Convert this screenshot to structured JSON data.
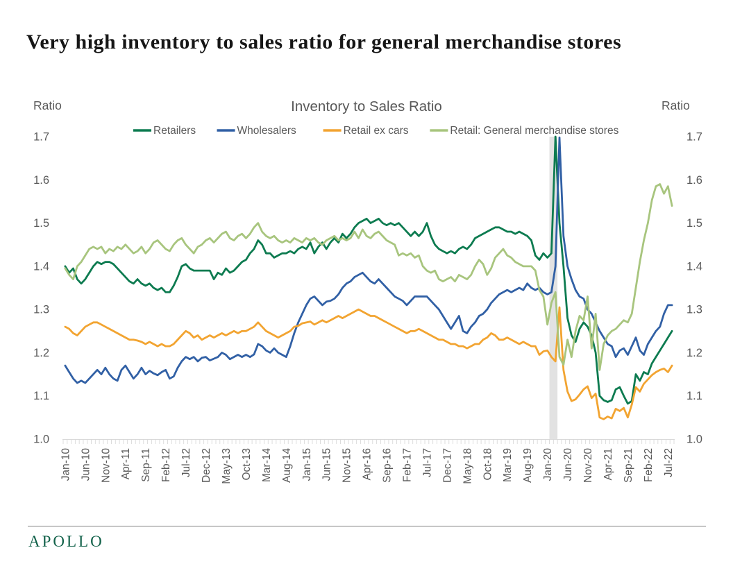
{
  "page_title": "Very high inventory to sales ratio for general merchandise stores",
  "chart_data": {
    "type": "line",
    "title": "Inventory to Sales Ratio",
    "y_axis_label_left": "Ratio",
    "y_axis_label_right": "Ratio",
    "ylim": [
      1.0,
      1.7
    ],
    "y_ticks": [
      1.0,
      1.1,
      1.2,
      1.3,
      1.4,
      1.5,
      1.6,
      1.7
    ],
    "x_label_interval": 5,
    "x_tick_labels": [
      "Jan-10",
      "Jun-10",
      "Nov-10",
      "Apr-11",
      "Sep-11",
      "Feb-12",
      "Jul-12",
      "Dec-12",
      "May-13",
      "Oct-13",
      "Mar-14",
      "Aug-14",
      "Jan-15",
      "Jun-15",
      "Nov-15",
      "Apr-16",
      "Sep-16",
      "Feb-17",
      "Jul-17",
      "Dec-17",
      "May-18",
      "Oct-18",
      "Mar-19",
      "Aug-19",
      "Jan-20",
      "Jun-20",
      "Nov-20",
      "Apr-21",
      "Sep-21",
      "Feb-22",
      "Jul-22"
    ],
    "categories": [
      "Jan-10",
      "Feb-10",
      "Mar-10",
      "Apr-10",
      "May-10",
      "Jun-10",
      "Jul-10",
      "Aug-10",
      "Sep-10",
      "Oct-10",
      "Nov-10",
      "Dec-10",
      "Jan-11",
      "Feb-11",
      "Mar-11",
      "Apr-11",
      "May-11",
      "Jun-11",
      "Jul-11",
      "Aug-11",
      "Sep-11",
      "Oct-11",
      "Nov-11",
      "Dec-11",
      "Jan-12",
      "Feb-12",
      "Mar-12",
      "Apr-12",
      "May-12",
      "Jun-12",
      "Jul-12",
      "Aug-12",
      "Sep-12",
      "Oct-12",
      "Nov-12",
      "Dec-12",
      "Jan-13",
      "Feb-13",
      "Mar-13",
      "Apr-13",
      "May-13",
      "Jun-13",
      "Jul-13",
      "Aug-13",
      "Sep-13",
      "Oct-13",
      "Nov-13",
      "Dec-13",
      "Jan-14",
      "Feb-14",
      "Mar-14",
      "Apr-14",
      "May-14",
      "Jun-14",
      "Jul-14",
      "Aug-14",
      "Sep-14",
      "Oct-14",
      "Nov-14",
      "Dec-14",
      "Jan-15",
      "Feb-15",
      "Mar-15",
      "Apr-15",
      "May-15",
      "Jun-15",
      "Jul-15",
      "Aug-15",
      "Sep-15",
      "Oct-15",
      "Nov-15",
      "Dec-15",
      "Jan-16",
      "Feb-16",
      "Mar-16",
      "Apr-16",
      "May-16",
      "Jun-16",
      "Jul-16",
      "Aug-16",
      "Sep-16",
      "Oct-16",
      "Nov-16",
      "Dec-16",
      "Jan-17",
      "Feb-17",
      "Mar-17",
      "Apr-17",
      "May-17",
      "Jun-17",
      "Jul-17",
      "Aug-17",
      "Sep-17",
      "Oct-17",
      "Nov-17",
      "Dec-17",
      "Jan-18",
      "Feb-18",
      "Mar-18",
      "Apr-18",
      "May-18",
      "Jun-18",
      "Jul-18",
      "Aug-18",
      "Sep-18",
      "Oct-18",
      "Nov-18",
      "Dec-18",
      "Jan-19",
      "Feb-19",
      "Mar-19",
      "Apr-19",
      "May-19",
      "Jun-19",
      "Jul-19",
      "Aug-19",
      "Sep-19",
      "Oct-19",
      "Nov-19",
      "Dec-19",
      "Jan-20",
      "Feb-20",
      "Mar-20",
      "Apr-20",
      "May-20",
      "Jun-20",
      "Jul-20",
      "Aug-20",
      "Sep-20",
      "Oct-20",
      "Nov-20",
      "Dec-20",
      "Jan-21",
      "Feb-21",
      "Mar-21",
      "Apr-21",
      "May-21",
      "Jun-21",
      "Jul-21",
      "Aug-21",
      "Sep-21",
      "Oct-21",
      "Nov-21",
      "Dec-21",
      "Jan-22",
      "Feb-22",
      "Mar-22",
      "Apr-22",
      "May-22",
      "Jun-22",
      "Jul-22",
      "Aug-22"
    ],
    "series": [
      {
        "name": "Retailers",
        "color": "#0D7B50",
        "values": [
          1.4,
          1.385,
          1.395,
          1.37,
          1.36,
          1.37,
          1.385,
          1.4,
          1.41,
          1.405,
          1.41,
          1.41,
          1.405,
          1.395,
          1.385,
          1.375,
          1.365,
          1.36,
          1.37,
          1.36,
          1.355,
          1.36,
          1.35,
          1.345,
          1.35,
          1.34,
          1.34,
          1.355,
          1.375,
          1.4,
          1.405,
          1.395,
          1.39,
          1.39,
          1.39,
          1.39,
          1.39,
          1.37,
          1.385,
          1.38,
          1.395,
          1.385,
          1.39,
          1.4,
          1.41,
          1.415,
          1.43,
          1.44,
          1.46,
          1.45,
          1.43,
          1.43,
          1.42,
          1.425,
          1.43,
          1.43,
          1.435,
          1.43,
          1.44,
          1.445,
          1.44,
          1.455,
          1.43,
          1.445,
          1.455,
          1.44,
          1.455,
          1.465,
          1.455,
          1.475,
          1.465,
          1.475,
          1.49,
          1.5,
          1.505,
          1.51,
          1.5,
          1.505,
          1.51,
          1.5,
          1.495,
          1.5,
          1.495,
          1.5,
          1.49,
          1.48,
          1.47,
          1.48,
          1.47,
          1.48,
          1.5,
          1.47,
          1.45,
          1.44,
          1.435,
          1.43,
          1.435,
          1.43,
          1.44,
          1.445,
          1.44,
          1.45,
          1.465,
          1.47,
          1.475,
          1.48,
          1.485,
          1.49,
          1.49,
          1.485,
          1.48,
          1.48,
          1.475,
          1.48,
          1.475,
          1.47,
          1.46,
          1.425,
          1.415,
          1.43,
          1.42,
          1.43,
          1.7,
          1.5,
          1.4,
          1.28,
          1.24,
          1.225,
          1.255,
          1.27,
          1.26,
          1.24,
          1.2,
          1.1,
          1.09,
          1.086,
          1.09,
          1.115,
          1.12,
          1.1,
          1.082,
          1.088,
          1.15,
          1.135,
          1.155,
          1.15,
          1.175,
          1.19,
          1.205,
          1.22,
          1.235,
          1.25
        ]
      },
      {
        "name": "Wholesalers",
        "color": "#3160A5",
        "values": [
          1.17,
          1.155,
          1.14,
          1.13,
          1.135,
          1.13,
          1.14,
          1.15,
          1.16,
          1.15,
          1.165,
          1.15,
          1.14,
          1.135,
          1.16,
          1.17,
          1.155,
          1.14,
          1.15,
          1.165,
          1.15,
          1.158,
          1.152,
          1.148,
          1.155,
          1.16,
          1.14,
          1.145,
          1.165,
          1.18,
          1.19,
          1.185,
          1.19,
          1.18,
          1.188,
          1.19,
          1.182,
          1.186,
          1.19,
          1.2,
          1.195,
          1.185,
          1.19,
          1.195,
          1.19,
          1.195,
          1.19,
          1.196,
          1.22,
          1.215,
          1.205,
          1.2,
          1.21,
          1.2,
          1.195,
          1.19,
          1.215,
          1.245,
          1.27,
          1.29,
          1.31,
          1.325,
          1.33,
          1.32,
          1.31,
          1.318,
          1.32,
          1.325,
          1.335,
          1.35,
          1.36,
          1.365,
          1.375,
          1.38,
          1.385,
          1.375,
          1.365,
          1.36,
          1.37,
          1.36,
          1.35,
          1.34,
          1.33,
          1.325,
          1.32,
          1.31,
          1.32,
          1.33,
          1.33,
          1.33,
          1.33,
          1.32,
          1.31,
          1.3,
          1.285,
          1.27,
          1.255,
          1.27,
          1.285,
          1.25,
          1.245,
          1.26,
          1.27,
          1.285,
          1.29,
          1.3,
          1.315,
          1.325,
          1.335,
          1.34,
          1.345,
          1.34,
          1.345,
          1.35,
          1.345,
          1.36,
          1.35,
          1.345,
          1.35,
          1.34,
          1.335,
          1.34,
          1.4,
          1.698,
          1.47,
          1.4,
          1.37,
          1.345,
          1.33,
          1.325,
          1.3,
          1.29,
          1.27,
          1.25,
          1.235,
          1.22,
          1.215,
          1.19,
          1.205,
          1.21,
          1.195,
          1.215,
          1.235,
          1.205,
          1.195,
          1.22,
          1.235,
          1.25,
          1.26,
          1.29,
          1.31,
          1.31
        ]
      },
      {
        "name": "Retail ex cars",
        "color": "#F2A431",
        "values": [
          1.26,
          1.255,
          1.245,
          1.24,
          1.25,
          1.26,
          1.265,
          1.27,
          1.27,
          1.265,
          1.26,
          1.255,
          1.25,
          1.245,
          1.24,
          1.235,
          1.23,
          1.23,
          1.228,
          1.225,
          1.22,
          1.225,
          1.22,
          1.215,
          1.22,
          1.215,
          1.215,
          1.22,
          1.23,
          1.24,
          1.25,
          1.245,
          1.235,
          1.24,
          1.23,
          1.235,
          1.24,
          1.235,
          1.24,
          1.245,
          1.24,
          1.245,
          1.25,
          1.245,
          1.25,
          1.25,
          1.255,
          1.26,
          1.27,
          1.26,
          1.25,
          1.245,
          1.24,
          1.235,
          1.24,
          1.245,
          1.25,
          1.26,
          1.262,
          1.268,
          1.27,
          1.272,
          1.265,
          1.27,
          1.275,
          1.27,
          1.275,
          1.28,
          1.285,
          1.28,
          1.285,
          1.29,
          1.295,
          1.3,
          1.295,
          1.29,
          1.285,
          1.285,
          1.28,
          1.275,
          1.27,
          1.265,
          1.26,
          1.255,
          1.25,
          1.245,
          1.25,
          1.25,
          1.255,
          1.25,
          1.245,
          1.24,
          1.235,
          1.23,
          1.23,
          1.225,
          1.22,
          1.22,
          1.215,
          1.215,
          1.21,
          1.215,
          1.22,
          1.22,
          1.23,
          1.235,
          1.245,
          1.24,
          1.23,
          1.23,
          1.235,
          1.23,
          1.225,
          1.22,
          1.225,
          1.22,
          1.215,
          1.215,
          1.195,
          1.203,
          1.205,
          1.19,
          1.18,
          1.305,
          1.16,
          1.11,
          1.088,
          1.092,
          1.103,
          1.115,
          1.122,
          1.095,
          1.105,
          1.05,
          1.046,
          1.052,
          1.048,
          1.07,
          1.065,
          1.072,
          1.05,
          1.08,
          1.12,
          1.11,
          1.128,
          1.138,
          1.148,
          1.155,
          1.16,
          1.163,
          1.155,
          1.17
        ]
      },
      {
        "name": "Retail: General merchandise stores",
        "color": "#A8C57E",
        "values": [
          1.395,
          1.38,
          1.37,
          1.4,
          1.41,
          1.425,
          1.44,
          1.445,
          1.44,
          1.445,
          1.43,
          1.44,
          1.435,
          1.445,
          1.44,
          1.45,
          1.44,
          1.43,
          1.435,
          1.445,
          1.43,
          1.44,
          1.455,
          1.46,
          1.45,
          1.44,
          1.435,
          1.45,
          1.46,
          1.465,
          1.45,
          1.44,
          1.43,
          1.445,
          1.45,
          1.46,
          1.465,
          1.455,
          1.465,
          1.475,
          1.48,
          1.465,
          1.46,
          1.47,
          1.475,
          1.465,
          1.475,
          1.49,
          1.5,
          1.48,
          1.47,
          1.465,
          1.47,
          1.46,
          1.455,
          1.46,
          1.455,
          1.465,
          1.46,
          1.455,
          1.465,
          1.46,
          1.465,
          1.455,
          1.45,
          1.46,
          1.465,
          1.47,
          1.46,
          1.465,
          1.46,
          1.465,
          1.48,
          1.465,
          1.485,
          1.47,
          1.465,
          1.475,
          1.48,
          1.47,
          1.46,
          1.455,
          1.45,
          1.425,
          1.43,
          1.425,
          1.43,
          1.42,
          1.425,
          1.4,
          1.39,
          1.385,
          1.39,
          1.37,
          1.365,
          1.37,
          1.375,
          1.365,
          1.38,
          1.375,
          1.37,
          1.38,
          1.4,
          1.415,
          1.405,
          1.38,
          1.395,
          1.42,
          1.43,
          1.44,
          1.425,
          1.42,
          1.41,
          1.405,
          1.4,
          1.4,
          1.4,
          1.39,
          1.345,
          1.33,
          1.265,
          1.315,
          1.34,
          1.19,
          1.172,
          1.23,
          1.19,
          1.25,
          1.285,
          1.275,
          1.33,
          1.21,
          1.29,
          1.16,
          1.22,
          1.24,
          1.25,
          1.255,
          1.265,
          1.275,
          1.27,
          1.29,
          1.35,
          1.41,
          1.46,
          1.5,
          1.553,
          1.585,
          1.59,
          1.568,
          1.585,
          1.54
        ]
      }
    ],
    "shaded_region": {
      "start": "Feb-20",
      "end": "Mar-20",
      "start_index": 121,
      "end_index": 123,
      "color": "#E2E2E2"
    },
    "legend_position": "top",
    "grid": false
  },
  "footer": {
    "brand": "APOLLO"
  }
}
